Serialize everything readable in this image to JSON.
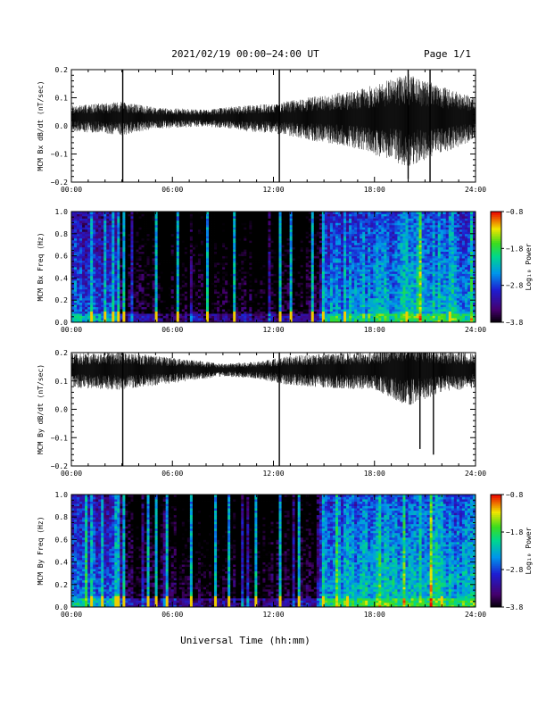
{
  "header": {
    "date_range": "2021/02/19  00:00−24:00 UT",
    "page": "Page 1/1"
  },
  "footer": {
    "xlabel": "Universal Time (hh:mm)"
  },
  "chart_data": [
    {
      "id": "bx-line",
      "type": "line",
      "ylabel": "MCM Bx dB/dt (nT/sec)",
      "x_range": [
        0,
        24
      ],
      "ylim": [
        -0.2,
        0.2
      ],
      "x_ticks": [
        "00:00",
        "06:00",
        "12:00",
        "18:00",
        "24:00"
      ],
      "y_ticks": [
        "0.2",
        "0.1",
        "0.0",
        "−0.1",
        "−0.2"
      ],
      "y_tick_values": [
        0.2,
        0.1,
        0.0,
        -0.1,
        -0.2
      ],
      "baseline": 0.03,
      "noise_profile": [
        {
          "h": 0,
          "amp": 0.03
        },
        {
          "h": 3,
          "amp": 0.04
        },
        {
          "h": 5,
          "amp": 0.025
        },
        {
          "h": 8,
          "amp": 0.02
        },
        {
          "h": 10,
          "amp": 0.03
        },
        {
          "h": 12,
          "amp": 0.035
        },
        {
          "h": 14,
          "amp": 0.05
        },
        {
          "h": 17,
          "amp": 0.07
        },
        {
          "h": 20,
          "amp": 0.11
        },
        {
          "h": 22,
          "amp": 0.08
        },
        {
          "h": 24,
          "amp": 0.05
        }
      ],
      "spikes": [
        {
          "t": 3.05,
          "min": -0.2,
          "max": 0.2
        },
        {
          "t": 12.35,
          "min": -0.2,
          "max": 0.2
        },
        {
          "t": 20.0,
          "min": -0.19,
          "max": 0.2
        },
        {
          "t": 21.3,
          "min": -0.2,
          "max": 0.2
        }
      ]
    },
    {
      "id": "bx-spec",
      "type": "heatmap",
      "ylabel": "MCM Bx Freq (Hz)",
      "colorbar_label": "Log₁₀ Power",
      "colorbar_ticks": [
        "−0.8",
        "−1.8",
        "−2.8",
        "−3.8"
      ],
      "colorbar_tick_values": [
        -0.8,
        -1.8,
        -2.8,
        -3.8
      ],
      "clim": [
        -3.8,
        -0.8
      ],
      "x_range": [
        0,
        24
      ],
      "ylim": [
        0,
        1
      ],
      "x_ticks": [
        "00:00",
        "06:00",
        "12:00",
        "18:00",
        "24:00"
      ],
      "y_ticks": [
        "1.0",
        "0.8",
        "0.6",
        "0.4",
        "0.2",
        "0.0"
      ],
      "y_tick_values": [
        1.0,
        0.8,
        0.6,
        0.4,
        0.2,
        0.0
      ],
      "power_profile": [
        {
          "h": 0,
          "p": -2.6
        },
        {
          "h": 2.5,
          "p": -2.7
        },
        {
          "h": 3.2,
          "p": -3.7
        },
        {
          "h": 12.0,
          "p": -3.75
        },
        {
          "h": 14.5,
          "p": -3.6
        },
        {
          "h": 15.0,
          "p": -2.5
        },
        {
          "h": 18,
          "p": -2.3
        },
        {
          "h": 21,
          "p": -2.1
        },
        {
          "h": 24,
          "p": -2.3
        }
      ],
      "streaks": [
        1.1,
        1.9,
        2.4,
        2.7,
        3.05,
        5.0,
        6.2,
        8.0,
        9.6,
        12.35,
        13.0,
        14.2,
        14.9,
        16.1,
        19.9,
        22.4
      ]
    },
    {
      "id": "by-line",
      "type": "line",
      "ylabel": "MCM By dB/dt (nT/sec)",
      "x_range": [
        0,
        24
      ],
      "ylim": [
        -0.2,
        0.2
      ],
      "x_ticks": [
        "00:00",
        "06:00",
        "12:00",
        "18:00",
        "24:00"
      ],
      "y_ticks": [
        "0.2",
        "0.1",
        "0.0",
        "−0.1",
        "−0.2"
      ],
      "y_tick_values": [
        0.2,
        0.1,
        0.0,
        -0.1,
        -0.2
      ],
      "baseline": 0.14,
      "noise_profile": [
        {
          "h": 0,
          "amp": 0.04
        },
        {
          "h": 3,
          "amp": 0.045
        },
        {
          "h": 6,
          "amp": 0.03
        },
        {
          "h": 9,
          "amp": 0.015
        },
        {
          "h": 11,
          "amp": 0.02
        },
        {
          "h": 13,
          "amp": 0.035
        },
        {
          "h": 15,
          "amp": 0.04
        },
        {
          "h": 18,
          "amp": 0.045
        },
        {
          "h": 20,
          "amp": 0.08
        },
        {
          "h": 22,
          "amp": 0.05
        },
        {
          "h": 24,
          "amp": 0.04
        }
      ],
      "spikes": [
        {
          "t": 3.05,
          "min": -0.2,
          "max": 0.2
        },
        {
          "t": 12.35,
          "min": -0.2,
          "max": 0.2
        },
        {
          "t": 20.7,
          "min": -0.14,
          "max": 0.2
        },
        {
          "t": 21.5,
          "min": -0.16,
          "max": 0.2
        }
      ]
    },
    {
      "id": "by-spec",
      "type": "heatmap",
      "ylabel": "MCM By Freq (Hz)",
      "colorbar_label": "Log₁₀ Power",
      "colorbar_ticks": [
        "−0.8",
        "−1.8",
        "−2.8",
        "−3.8"
      ],
      "colorbar_tick_values": [
        -0.8,
        -1.8,
        -2.8,
        -3.8
      ],
      "clim": [
        -3.8,
        -0.8
      ],
      "x_range": [
        0,
        24
      ],
      "ylim": [
        0,
        1
      ],
      "x_ticks": [
        "00:00",
        "06:00",
        "12:00",
        "18:00",
        "24:00"
      ],
      "y_ticks": [
        "1.0",
        "0.8",
        "0.6",
        "0.4",
        "0.2",
        "0.0"
      ],
      "y_tick_values": [
        1.0,
        0.8,
        0.6,
        0.4,
        0.2,
        0.0
      ],
      "power_profile": [
        {
          "h": 0,
          "p": -2.5
        },
        {
          "h": 2.5,
          "p": -2.6
        },
        {
          "h": 3.2,
          "p": -3.6
        },
        {
          "h": 12.0,
          "p": -3.7
        },
        {
          "h": 14.5,
          "p": -3.5
        },
        {
          "h": 15.0,
          "p": -2.4
        },
        {
          "h": 18,
          "p": -2.2
        },
        {
          "h": 21,
          "p": -2.0
        },
        {
          "h": 24,
          "p": -2.3
        }
      ],
      "streaks": [
        1.2,
        1.8,
        2.5,
        2.8,
        3.05,
        4.4,
        4.9,
        5.6,
        7.0,
        8.4,
        9.3,
        10.9,
        12.35,
        13.4,
        14.8,
        16.4,
        21.9
      ]
    }
  ]
}
